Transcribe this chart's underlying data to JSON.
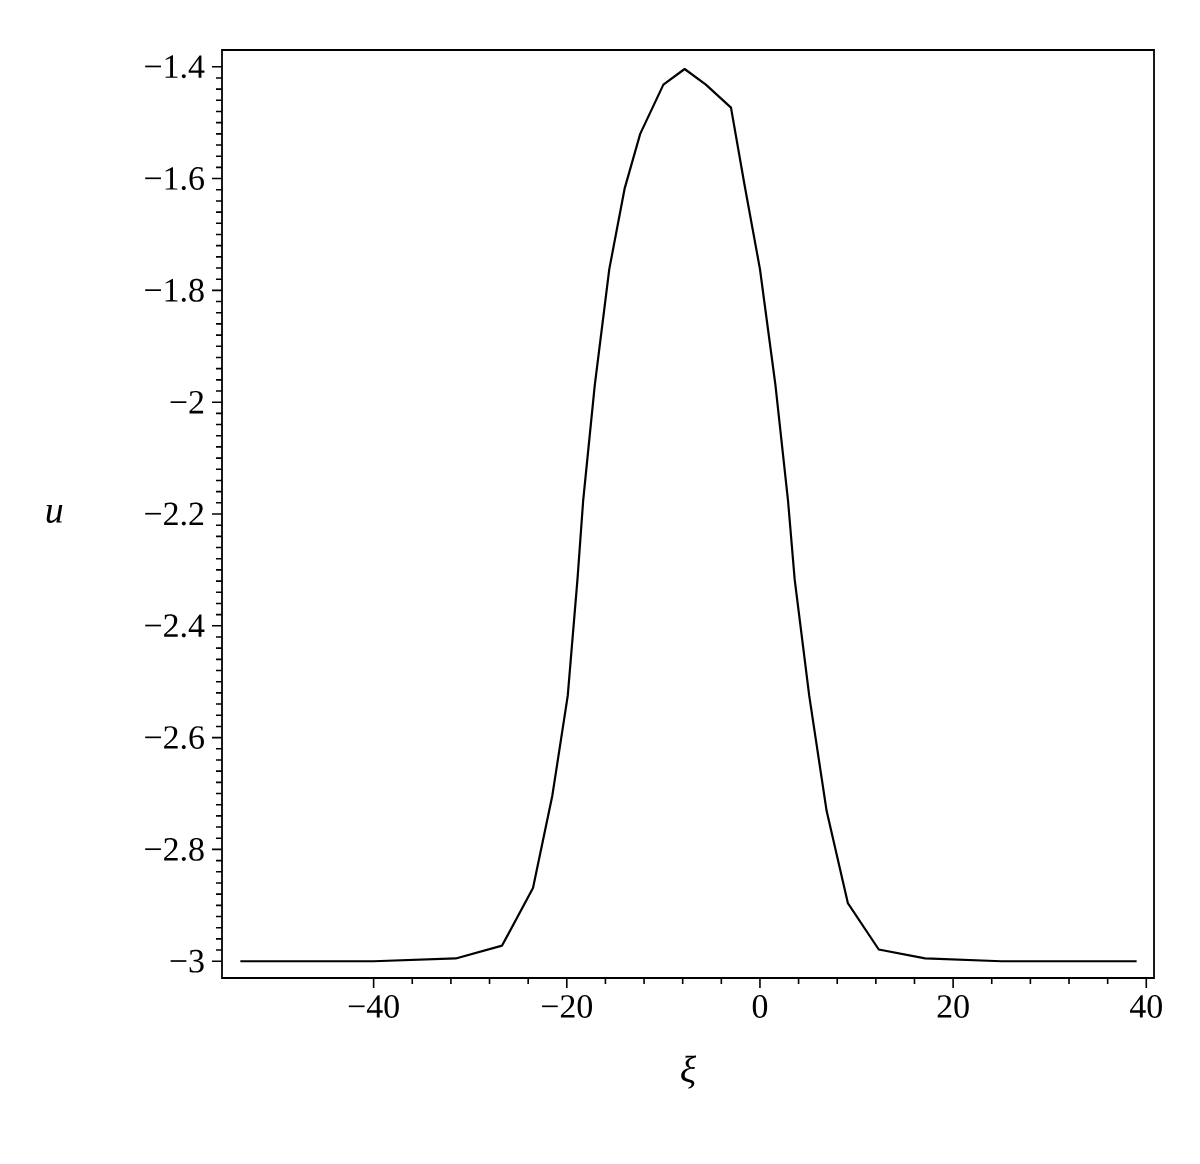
{
  "chart_data": {
    "type": "line",
    "xlabel": "ξ",
    "ylabel": "u",
    "xlim": [
      -55.7,
      40.8
    ],
    "ylim": [
      -3.03,
      -1.37
    ],
    "xticks": [
      {
        "value": -40,
        "label": "−40"
      },
      {
        "value": -20,
        "label": "−20"
      },
      0,
      20,
      40
    ],
    "yticks": [
      {
        "value": -3,
        "label": "−3"
      },
      {
        "value": -2.8,
        "label": "−2.8"
      },
      {
        "value": -2.6,
        "label": "−2.6"
      },
      {
        "value": -2.4,
        "label": "−2.4"
      },
      {
        "value": -2.2,
        "label": "−2.2"
      },
      {
        "value": -2,
        "label": "−2"
      },
      {
        "value": -1.8,
        "label": "−1.8"
      },
      {
        "value": -1.6,
        "label": "−1.6"
      },
      {
        "value": -1.4,
        "label": "−1.4"
      }
    ],
    "marker": "none",
    "line_style": "solid",
    "series": [
      {
        "color": "#000000",
        "x": [
          -53.8,
          -40,
          -31.5,
          -26.7,
          -23.5,
          -21.5,
          -19.9,
          -18.9,
          -18.3,
          -17.1,
          -15.6,
          -14.0,
          -12.4,
          -10.0,
          -7.8,
          -5.6,
          -3.0,
          -1.6,
          0.0,
          1.6,
          2.9,
          3.6,
          5.1,
          6.9,
          9.1,
          12.3,
          17.1,
          25,
          39
        ],
        "values": [
          -3.0,
          -3.0,
          -2.995,
          -2.972,
          -2.869,
          -2.704,
          -2.525,
          -2.318,
          -2.175,
          -1.969,
          -1.762,
          -1.617,
          -1.52,
          -1.432,
          -1.404,
          -1.432,
          -1.473,
          -1.611,
          -1.762,
          -1.969,
          -2.175,
          -2.318,
          -2.525,
          -2.731,
          -2.896,
          -2.979,
          -2.995,
          -3.0,
          -3.0
        ]
      }
    ]
  }
}
